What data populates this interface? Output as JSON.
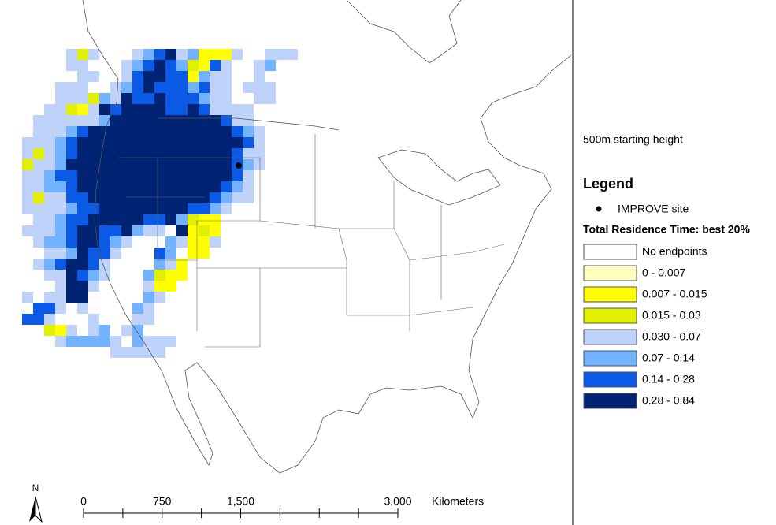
{
  "map": {
    "subtitle": "500m starting height",
    "legend": {
      "title": "Legend",
      "site_label": "IMPROVE site",
      "classes_title": "Total Residence Time: best 20%",
      "classes": [
        {
          "label": "No endpoints",
          "color": "#ffffff"
        },
        {
          "label": "0 - 0.007",
          "color": "#ffffc0"
        },
        {
          "label": "0.007 - 0.015",
          "color": "#ffff00"
        },
        {
          "label": "0.015 - 0.03",
          "color": "#e1f000"
        },
        {
          "label": "0.030 - 0.07",
          "color": "#bed2fa"
        },
        {
          "label": "0.07 - 0.14",
          "color": "#73b2ff"
        },
        {
          "label": "0.14 - 0.28",
          "color": "#0a5ae6"
        },
        {
          "label": "0.28 - 0.84",
          "color": "#002373"
        }
      ]
    },
    "scale_bar": {
      "labels": [
        "0",
        "750",
        "1,500",
        "3,000"
      ],
      "unit": "Kilometers"
    },
    "north": "N"
  }
}
